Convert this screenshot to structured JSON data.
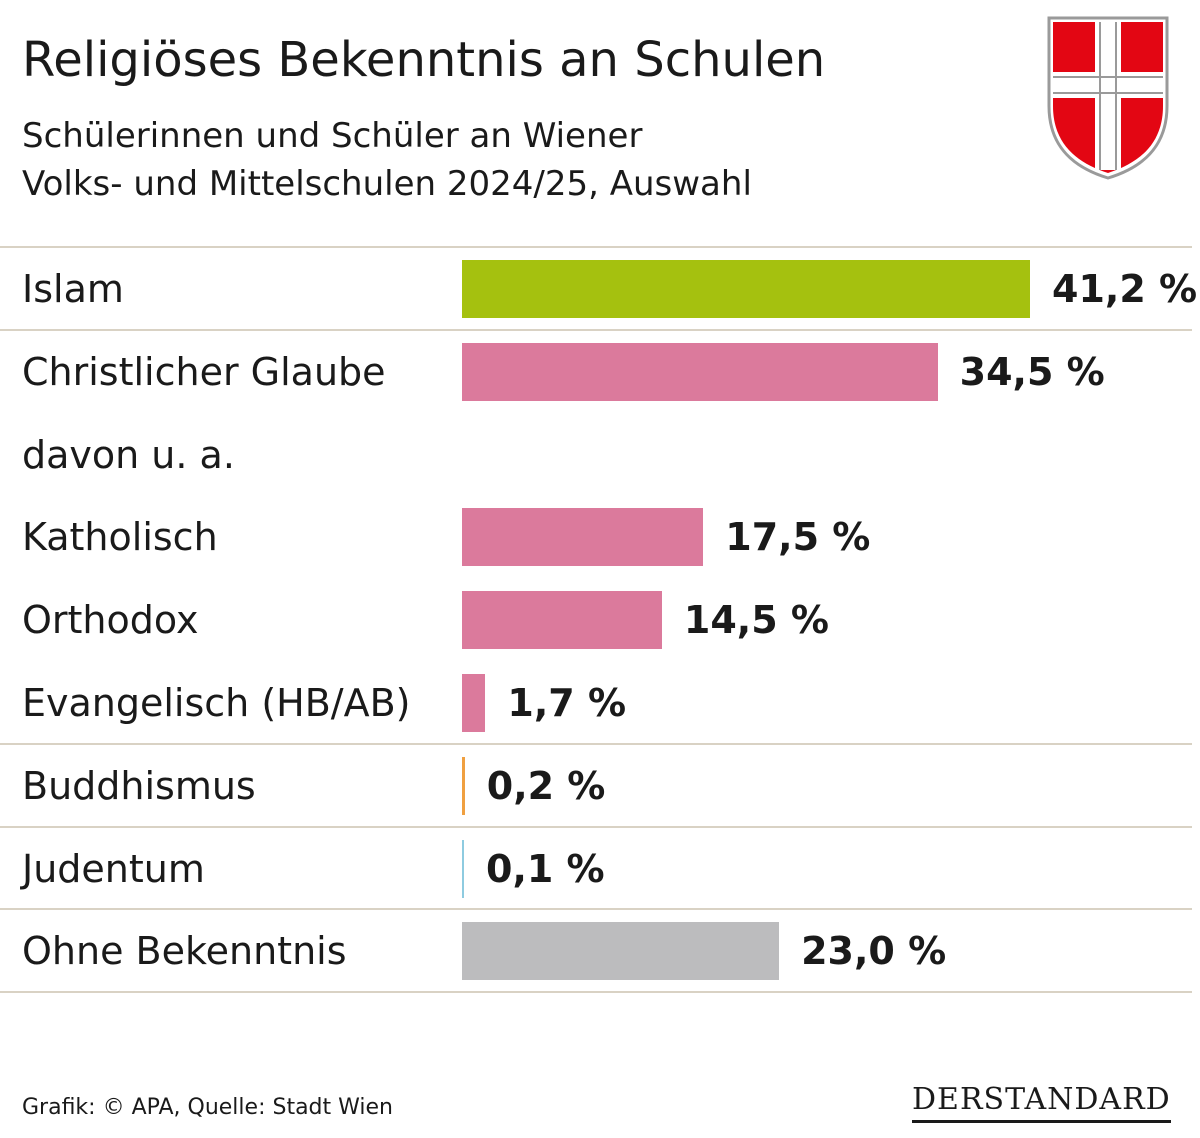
{
  "header": {
    "title": "Religiöses Bekenntnis an Schulen",
    "subtitle_lines": [
      "Schülerinnen und Schüler an Wiener",
      "Volks- und Mittelschulen 2024/25, Auswahl"
    ]
  },
  "crest": {
    "name": "vienna-coat-of-arms",
    "red": "#e30613",
    "white": "#ffffff"
  },
  "colors": {
    "islam": "#a5c10f",
    "christian": "#db7a9c",
    "buddhism": "#f0a040",
    "judaism": "#8ecbe0",
    "none": "#bcbcbe",
    "divider": "#d9d2c4"
  },
  "chart_data": {
    "type": "bar",
    "orientation": "horizontal",
    "unit": "%",
    "categories": [
      "Islam",
      "Christlicher Glaube",
      "davon u. a.",
      "Katholisch",
      "Orthodox",
      "Evangelisch (HB/AB)",
      "Buddhismus",
      "Judentum",
      "Ohne Bekenntnis"
    ],
    "values": [
      41.2,
      34.5,
      null,
      17.5,
      14.5,
      1.7,
      0.2,
      0.1,
      23.0
    ],
    "value_labels": [
      "41,2 %",
      "34,5 %",
      "",
      "17,5 %",
      "14,5 %",
      "1,7 %",
      "0,2 %",
      "0,1 %",
      "23,0 %"
    ],
    "color_keys": [
      "islam",
      "christian",
      null,
      "christian",
      "christian",
      "christian",
      "buddhism",
      "judaism",
      "none"
    ],
    "xlim": [
      0,
      41.2
    ],
    "grid": false
  },
  "footer": {
    "source": "Grafik: © APA, Quelle: Stadt Wien",
    "logo": "DERSTANDARD"
  }
}
